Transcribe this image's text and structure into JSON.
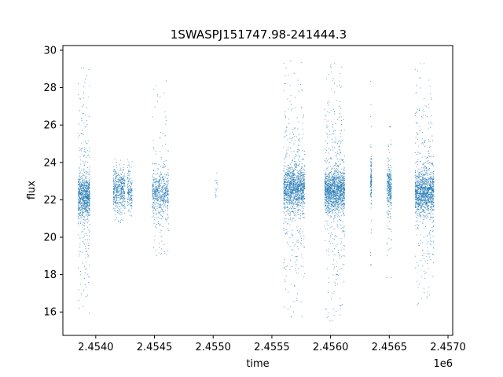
{
  "chart_data": {
    "type": "scatter",
    "title": "1SWASPJ151747.98-241444.3",
    "xlabel": "time",
    "ylabel": "flux",
    "x_offset_label": "1e6",
    "xlim": [
      2.45372,
      2.45704
    ],
    "ylim": [
      14.75,
      30.25
    ],
    "x_ticks": [
      2.454,
      2.4545,
      2.455,
      2.4555,
      2.456,
      2.4565,
      2.457
    ],
    "x_tick_labels": [
      "2.4540",
      "2.4545",
      "2.4550",
      "2.4555",
      "2.4560",
      "2.4565",
      "2.4570"
    ],
    "y_ticks": [
      16,
      18,
      20,
      22,
      24,
      26,
      28,
      30
    ],
    "y_tick_labels": [
      "16",
      "18",
      "20",
      "22",
      "24",
      "26",
      "28",
      "30"
    ],
    "grid": false,
    "legend": "none",
    "marker_color": "#1f77b4",
    "series": [
      {
        "clusters": [
          {
            "x_start": 2.45385,
            "x_end": 2.45395,
            "y_low": 15.5,
            "y_high": 29.5,
            "y_center": 22.2,
            "density": 900
          },
          {
            "x_start": 2.45415,
            "x_end": 2.45425,
            "y_low": 20.7,
            "y_high": 24.3,
            "y_center": 22.5,
            "density": 450
          },
          {
            "x_start": 2.45427,
            "x_end": 2.45431,
            "y_low": 21.0,
            "y_high": 24.3,
            "y_center": 22.5,
            "density": 150
          },
          {
            "x_start": 2.45448,
            "x_end": 2.45462,
            "y_low": 19.0,
            "y_high": 28.5,
            "y_center": 22.4,
            "density": 600
          },
          {
            "x_start": 2.45502,
            "x_end": 2.45504,
            "y_low": 21.8,
            "y_high": 23.5,
            "y_center": 22.5,
            "density": 15
          },
          {
            "x_start": 2.4556,
            "x_end": 2.45578,
            "y_low": 15.7,
            "y_high": 29.5,
            "y_center": 22.6,
            "density": 1400
          },
          {
            "x_start": 2.45595,
            "x_end": 2.45612,
            "y_low": 15.5,
            "y_high": 29.3,
            "y_center": 22.5,
            "density": 1500
          },
          {
            "x_start": 2.45634,
            "x_end": 2.45635,
            "y_low": 17.0,
            "y_high": 29.5,
            "y_center": 23.0,
            "density": 120
          },
          {
            "x_start": 2.45648,
            "x_end": 2.45652,
            "y_low": 17.8,
            "y_high": 26.0,
            "y_center": 22.6,
            "density": 300
          },
          {
            "x_start": 2.45672,
            "x_end": 2.45688,
            "y_low": 16.2,
            "y_high": 29.3,
            "y_center": 22.4,
            "density": 1300
          }
        ]
      }
    ]
  }
}
